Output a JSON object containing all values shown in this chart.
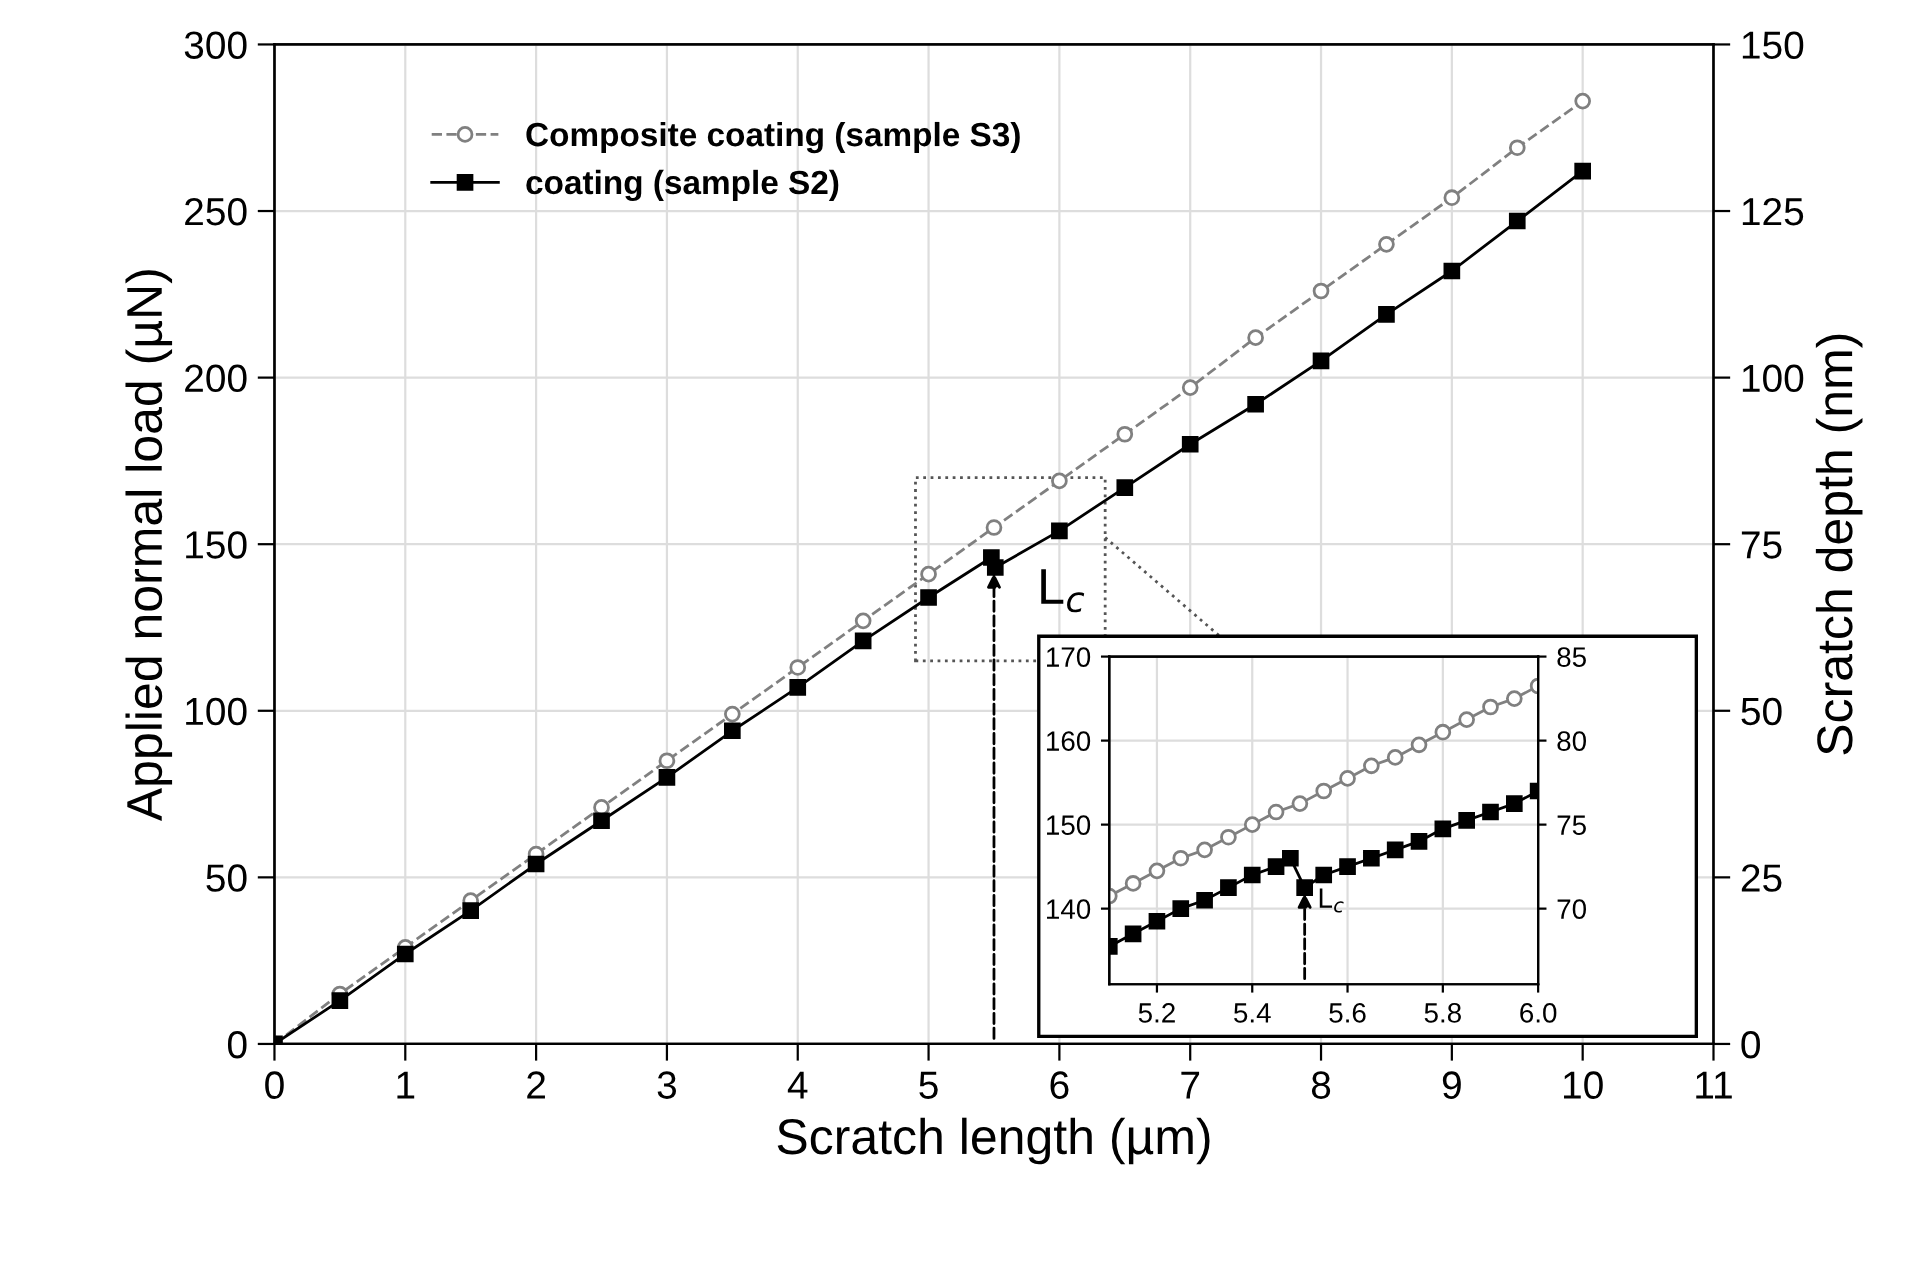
{
  "chart_data": [
    {
      "type": "line",
      "xlabel": "Scratch length (µm)",
      "ylabel": "Applied normal load (µN)",
      "y2label": "Scratch depth (nm)",
      "xlim": [
        0,
        11
      ],
      "xticks": [
        0,
        1,
        2,
        3,
        4,
        5,
        6,
        7,
        8,
        9,
        10,
        11
      ],
      "ylim": [
        0,
        300
      ],
      "yticks": [
        0,
        50,
        100,
        150,
        200,
        250,
        300
      ],
      "y2lim": [
        0,
        150
      ],
      "y2ticks": [
        0,
        25,
        50,
        75,
        100,
        125,
        150
      ],
      "grid": true,
      "legend": "top left",
      "series": [
        {
          "name": "Composite coating (sample S3)",
          "color": "#808080",
          "marker": "circle",
          "line_style": "dashed",
          "x": [
            0,
            0.5,
            1,
            1.5,
            2,
            2.5,
            3,
            3.5,
            4,
            4.5,
            5,
            5.5,
            6,
            6.5,
            7,
            7.5,
            8,
            8.5,
            9,
            9.5,
            10
          ],
          "values": [
            0,
            15,
            29,
            43,
            57,
            71,
            85,
            99,
            113,
            127,
            141,
            155,
            169,
            183,
            197,
            212,
            226,
            240,
            254,
            269,
            283
          ]
        },
        {
          "name": "coating (sample S2)",
          "color": "#000000",
          "marker": "square",
          "line_style": "solid",
          "x": [
            0,
            0.5,
            1,
            1.5,
            2,
            2.5,
            3,
            3.5,
            4,
            4.5,
            5,
            5.48,
            5.51,
            6,
            6.5,
            7,
            7.5,
            8,
            8.5,
            9,
            9.5,
            10
          ],
          "values": [
            0,
            13,
            27,
            40,
            54,
            67,
            80,
            94,
            107,
            121,
            134,
            146,
            143,
            154,
            167,
            180,
            192,
            205,
            219,
            232,
            247,
            262
          ]
        }
      ],
      "annotations": [
        {
          "text": "L$_{c}$",
          "x": 5.5,
          "y": 143
        }
      ]
    },
    {
      "type": "line",
      "xlim": [
        5.1,
        6.0
      ],
      "xticks": [
        {
          "value": 5.2,
          "label": "5.2"
        },
        {
          "value": 5.4,
          "label": "5.4"
        },
        {
          "value": 5.6,
          "label": "5.6"
        },
        {
          "value": 5.8,
          "label": "5.8"
        },
        {
          "value": 6.0,
          "label": "6.0"
        }
      ],
      "ylim": [
        131,
        170
      ],
      "yticks": [
        140,
        150,
        160,
        170
      ],
      "y2lim": [
        65.5,
        85
      ],
      "y2ticks": [
        70,
        75,
        80,
        85
      ],
      "grid": true,
      "series": [
        {
          "color": "#808080",
          "marker": "circle",
          "line_style": "solid",
          "x": [
            5.1,
            5.15,
            5.2,
            5.25,
            5.3,
            5.35,
            5.4,
            5.45,
            5.5,
            5.55,
            5.6,
            5.65,
            5.7,
            5.75,
            5.8,
            5.85,
            5.9,
            5.95,
            6.0
          ],
          "values": [
            141.5,
            143,
            144.5,
            146,
            147,
            148.5,
            150,
            151.5,
            152.5,
            154,
            155.5,
            157,
            158,
            159.5,
            161,
            162.5,
            164,
            165,
            166.5
          ]
        },
        {
          "color": "#000000",
          "marker": "square",
          "line_style": "solid",
          "x": [
            5.1,
            5.15,
            5.2,
            5.25,
            5.3,
            5.35,
            5.4,
            5.45,
            5.48,
            5.51,
            5.55,
            5.6,
            5.65,
            5.7,
            5.75,
            5.8,
            5.85,
            5.9,
            5.95,
            6.0
          ],
          "values": [
            135.5,
            137,
            138.5,
            140,
            141,
            142.5,
            144,
            145,
            146,
            142.5,
            144,
            145,
            146,
            147,
            148,
            149.5,
            150.5,
            151.5,
            152.5,
            154
          ]
        }
      ],
      "annotations": [
        {
          "text": "L$_{c}$",
          "x": 5.51,
          "y": 142.5
        }
      ]
    }
  ]
}
